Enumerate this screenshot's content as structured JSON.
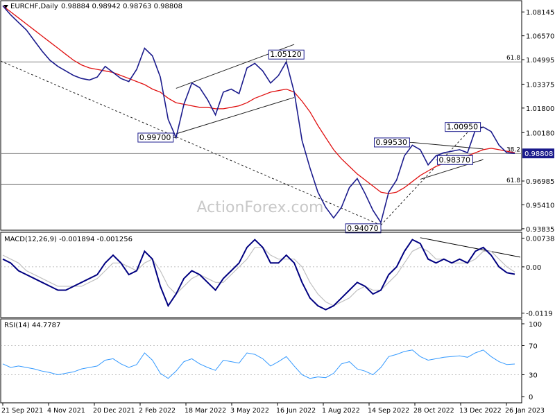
{
  "header": {
    "symbol": "EURCHF,Daily",
    "ohlc": "0.98884 0.98942 0.98763 0.98808"
  },
  "watermark": "ActionForex.com",
  "colors": {
    "price": "#1a1a8c",
    "ma": "#e01010",
    "macd_main": "#000080",
    "macd_signal": "#c0c0c0",
    "rsi": "#3399ff",
    "tag_border": "#1a1a8c",
    "current_tag_bg": "#1a1a8c"
  },
  "chart_data": [
    {
      "type": "line",
      "panel": "price",
      "ylim": [
        0.9383,
        1.0875
      ],
      "y_ticks": [
        "1.08145",
        "1.06570",
        "1.04995",
        "1.03375",
        "1.01800",
        "1.00180",
        "0.98808",
        "0.96985",
        "0.95410",
        "0.93835"
      ],
      "x_ticks": [
        "21 Sep 2021",
        "4 Nov 2021",
        "20 Dec 2021",
        "2 Feb 2022",
        "18 Mar 2022",
        "3 May 2022",
        "16 Jun 2022",
        "1 Aug 2022",
        "14 Sep 2022",
        "28 Oct 2022",
        "13 Dec 2022",
        "26 Jan 2023"
      ],
      "current_price": "0.98808",
      "series": [
        {
          "role": "price",
          "y": [
            1.0855,
            1.0795,
            1.0745,
            1.0695,
            1.0625,
            1.0555,
            1.0495,
            1.0455,
            1.0425,
            1.0395,
            1.0375,
            1.0365,
            1.0385,
            1.0455,
            1.0415,
            1.0375,
            1.0355,
            1.0435,
            1.0575,
            1.0525,
            1.0385,
            1.0105,
            0.9985,
            1.0205,
            1.0345,
            1.0315,
            1.0235,
            1.0135,
            1.0285,
            1.0305,
            1.0275,
            1.0445,
            1.0475,
            1.0425,
            1.0345,
            1.0395,
            1.0485,
            1.0285,
            0.9965,
            0.9785,
            0.9625,
            0.9525,
            0.9455,
            0.9525,
            0.9655,
            0.9715,
            0.9615,
            0.9505,
            0.9425,
            0.9625,
            0.9705,
            0.9865,
            0.9935,
            0.9905,
            0.9805,
            0.9865,
            0.9885,
            0.9895,
            0.9905,
            0.9885,
            1.0035,
            1.0055,
            1.0025,
            0.9935,
            0.9885,
            0.9881
          ]
        },
        {
          "role": "moving-average",
          "y": [
            1.0855,
            1.0815,
            1.0775,
            1.0735,
            1.0695,
            1.0655,
            1.0615,
            1.0575,
            1.0535,
            1.0495,
            1.0465,
            1.0445,
            1.0435,
            1.0425,
            1.0415,
            1.0395,
            1.0375,
            1.0355,
            1.0335,
            1.0305,
            1.0285,
            1.0245,
            1.0215,
            1.0205,
            1.0195,
            1.0185,
            1.0185,
            1.0175,
            1.0175,
            1.0185,
            1.0195,
            1.0215,
            1.0245,
            1.0265,
            1.0285,
            1.0295,
            1.0305,
            1.0285,
            1.0225,
            1.0155,
            1.0065,
            0.9985,
            0.9905,
            0.9845,
            0.9795,
            0.9745,
            0.9705,
            0.9665,
            0.9625,
            0.9615,
            0.9625,
            0.9655,
            0.9695,
            0.9735,
            0.9765,
            0.9795,
            0.9815,
            0.9835,
            0.9855,
            0.9865,
            0.9885,
            0.9905,
            0.9915,
            0.9905,
            0.9895,
            0.9885
          ]
        }
      ],
      "levels": [
        {
          "label": "61.8",
          "value": 1.0485
        },
        {
          "label": "38.2",
          "value": 0.988
        },
        {
          "label": "61.8",
          "value": 0.9675
        }
      ],
      "tags": [
        {
          "name": "tag-105120",
          "label": "1.05120"
        },
        {
          "name": "tag-099700",
          "label": "0.99700"
        },
        {
          "name": "tag-094070",
          "label": "0.94070"
        },
        {
          "name": "tag-099530",
          "label": "0.99530"
        },
        {
          "name": "tag-100950",
          "label": "1.00950"
        },
        {
          "name": "tag-098370",
          "label": "0.98370"
        }
      ]
    },
    {
      "type": "line",
      "panel": "macd",
      "title": "MACD(12,26,9) -0.001894 -0.001256",
      "ylim": [
        -0.0125,
        0.008
      ],
      "y_ticks": [
        "0.007384",
        "0.00",
        "-0.0119"
      ],
      "series": [
        {
          "role": "macd",
          "y": [
            0.002,
            0.001,
            -0.001,
            -0.002,
            -0.003,
            -0.004,
            -0.005,
            -0.006,
            -0.006,
            -0.005,
            -0.004,
            -0.003,
            -0.002,
            0.001,
            0.003,
            0.001,
            -0.002,
            -0.001,
            0.004,
            0.002,
            -0.005,
            -0.01,
            -0.007,
            -0.003,
            -0.001,
            -0.002,
            -0.004,
            -0.006,
            -0.003,
            -0.001,
            0.001,
            0.005,
            0.007,
            0.005,
            0.001,
            0.001,
            0.003,
            0.001,
            -0.004,
            -0.008,
            -0.01,
            -0.011,
            -0.01,
            -0.008,
            -0.006,
            -0.004,
            -0.005,
            -0.007,
            -0.006,
            -0.002,
            0.0,
            0.004,
            0.007,
            0.006,
            0.002,
            0.001,
            0.002,
            0.001,
            0.002,
            0.001,
            0.004,
            0.005,
            0.003,
            0.0,
            -0.0015,
            -0.0019
          ]
        },
        {
          "role": "signal",
          "y": [
            0.003,
            0.002,
            0.001,
            -0.001,
            -0.002,
            -0.003,
            -0.004,
            -0.005,
            -0.005,
            -0.005,
            -0.005,
            -0.004,
            -0.003,
            -0.001,
            0.001,
            0.001,
            0.0,
            -0.001,
            0.001,
            0.002,
            -0.001,
            -0.005,
            -0.007,
            -0.005,
            -0.003,
            -0.002,
            -0.003,
            -0.004,
            -0.004,
            -0.002,
            0.0,
            0.002,
            0.005,
            0.005,
            0.003,
            0.002,
            0.002,
            0.002,
            0.0,
            -0.004,
            -0.007,
            -0.009,
            -0.01,
            -0.009,
            -0.008,
            -0.006,
            -0.005,
            -0.006,
            -0.006,
            -0.004,
            -0.002,
            0.001,
            0.004,
            0.005,
            0.004,
            0.002,
            0.002,
            0.001,
            0.001,
            0.001,
            0.002,
            0.004,
            0.004,
            0.002,
            0.0,
            -0.0013
          ]
        }
      ]
    },
    {
      "type": "line",
      "panel": "rsi",
      "title": "RSI(14) 44.7787",
      "ylim": [
        0,
        100
      ],
      "y_ticks": [
        "100",
        "70",
        "30",
        "0"
      ],
      "series": [
        {
          "role": "rsi",
          "y": [
            45,
            40,
            42,
            40,
            38,
            35,
            33,
            30,
            32,
            34,
            38,
            40,
            42,
            50,
            52,
            45,
            40,
            44,
            60,
            50,
            32,
            25,
            35,
            48,
            52,
            45,
            40,
            36,
            50,
            48,
            46,
            60,
            58,
            52,
            42,
            48,
            55,
            42,
            30,
            25,
            27,
            26,
            32,
            45,
            48,
            38,
            35,
            30,
            40,
            55,
            58,
            62,
            64,
            55,
            50,
            52,
            54,
            55,
            56,
            54,
            60,
            64,
            55,
            48,
            44,
            44.8
          ]
        }
      ]
    }
  ]
}
